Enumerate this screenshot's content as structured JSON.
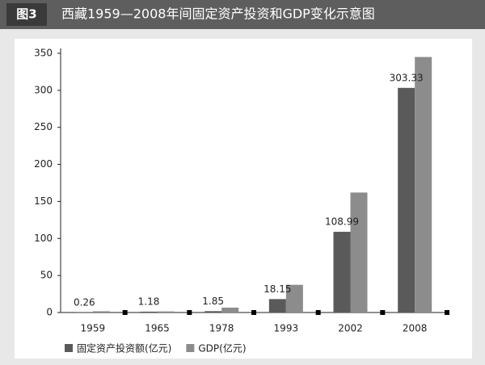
{
  "chart_data": {
    "type": "bar",
    "label": "图3",
    "title": "西藏1959—2008年间固定资产投资和GDP变化示意图",
    "categories": [
      "1959",
      "1965",
      "1978",
      "1993",
      "2002",
      "2008"
    ],
    "series": [
      {
        "name": "固定资产投资额(亿元)",
        "color": "#5a5a5a",
        "values": [
          0.26,
          1.18,
          1.85,
          18.15,
          108.99,
          303.33
        ]
      },
      {
        "name": "GDP(亿元)",
        "color": "#8c8c8c",
        "values": [
          1.7,
          1.5,
          6.6,
          37.4,
          162,
          345
        ]
      }
    ],
    "ylim": [
      0,
      350
    ],
    "yticks": [
      0,
      50,
      100,
      150,
      200,
      250,
      300,
      350
    ]
  }
}
